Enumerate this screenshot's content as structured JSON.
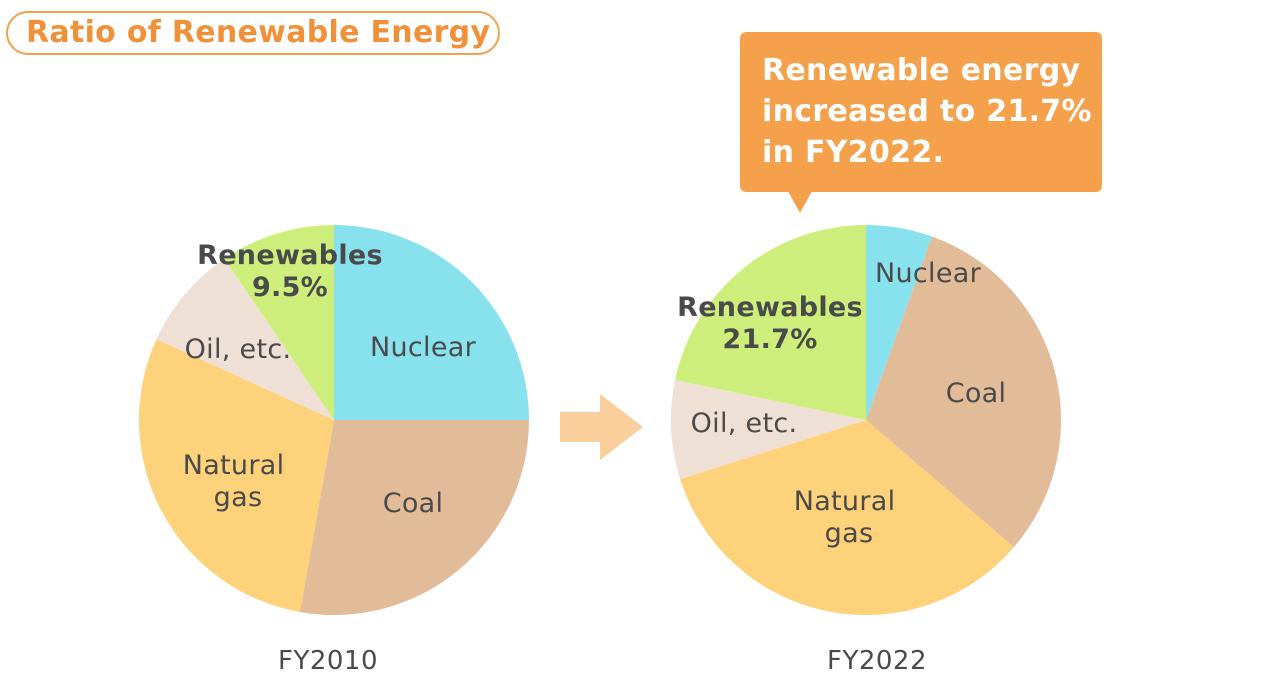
{
  "title": "Ratio of Renewable Energy",
  "callout": "Renewable energy\nincreased to 21.7%\nin FY2022.",
  "colors": {
    "nuclear": "#88e2ee",
    "coal": "#e2bc98",
    "natural_gas": "#fdd27a",
    "oil": "#efe0d5",
    "renewables": "#cdee7a",
    "accent": "#f5a04a",
    "arrow": "#fbcf9c"
  },
  "chart_data": [
    {
      "type": "pie",
      "caption": "FY2010",
      "slices": [
        {
          "key": "nuclear",
          "label": "Nuclear",
          "value": 25.0
        },
        {
          "key": "coal",
          "label": "Coal",
          "value": 27.8
        },
        {
          "key": "natural_gas",
          "label": "Natural gas",
          "value": 29.0
        },
        {
          "key": "oil",
          "label": "Oil, etc.",
          "value": 8.7
        },
        {
          "key": "renewables",
          "label": "Renewables",
          "value_label": "9.5%",
          "value": 9.5
        }
      ]
    },
    {
      "type": "pie",
      "caption": "FY2022",
      "slices": [
        {
          "key": "nuclear",
          "label": "Nuclear",
          "value": 5.5
        },
        {
          "key": "coal",
          "label": "Coal",
          "value": 30.8
        },
        {
          "key": "natural_gas",
          "label": "Natural gas",
          "value": 33.8
        },
        {
          "key": "oil",
          "label": "Oil, etc.",
          "value": 8.2
        },
        {
          "key": "renewables",
          "label": "Renewables",
          "value_label": "21.7%",
          "value": 21.7
        }
      ]
    }
  ]
}
